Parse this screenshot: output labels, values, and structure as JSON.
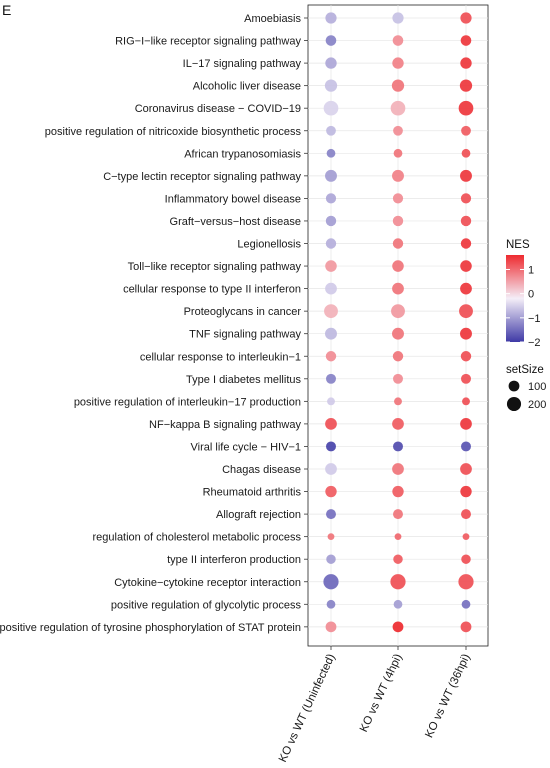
{
  "panel_label": "E",
  "chart_data": {
    "type": "scatter",
    "subtype": "dot-plot",
    "categories": [
      "Amoebiasis",
      "RIG−I−like receptor signaling pathway",
      "IL−17 signaling pathway",
      "Alcoholic liver disease",
      "Coronavirus disease − COVID−19",
      "positive regulation of nitricoxide biosynthetic process",
      "African trypanosomiasis",
      "C−type lectin receptor signaling pathway",
      "Inflammatory bowel disease",
      "Graft−versus−host disease",
      "Legionellosis",
      "Toll−like receptor signaling pathway",
      "cellular response to type II interferon",
      "Proteoglycans in cancer",
      "TNF signaling pathway",
      "cellular response to interleukin−1",
      "Type I diabetes mellitus",
      "positive regulation of interleukin−17 production",
      "NF−kappa B signaling pathway",
      "Viral life cycle − HIV−1",
      "Chagas disease",
      "Rheumatoid arthritis",
      "Allograft rejection",
      "regulation of cholesterol metabolic process",
      "type II interferon production",
      "Cytokine−cytokine receptor interaction",
      "positive regulation of glycolytic process",
      "positive regulation of tyrosine phosphorylation of STAT protein"
    ],
    "x": [
      "KO vs WT (Uninfected)",
      "KO vs WT (4hpi)",
      "KO vs WT (36hpi)"
    ],
    "nes": [
      [
        -0.7,
        -0.5,
        1.3
      ],
      [
        -1.2,
        0.8,
        1.5
      ],
      [
        -0.8,
        0.9,
        1.5
      ],
      [
        -0.5,
        1.0,
        1.5
      ],
      [
        -0.3,
        0.5,
        1.5
      ],
      [
        -0.6,
        0.8,
        1.2
      ],
      [
        -1.2,
        1.0,
        1.3
      ],
      [
        -0.9,
        0.9,
        1.5
      ],
      [
        -0.8,
        0.8,
        1.3
      ],
      [
        -0.9,
        0.8,
        1.3
      ],
      [
        -0.7,
        1.0,
        1.5
      ],
      [
        0.7,
        1.0,
        1.5
      ],
      [
        -0.4,
        1.0,
        1.5
      ],
      [
        0.5,
        0.7,
        1.3
      ],
      [
        -0.6,
        1.0,
        1.5
      ],
      [
        0.8,
        1.0,
        1.3
      ],
      [
        -1.2,
        0.8,
        1.3
      ],
      [
        -0.4,
        1.0,
        1.3
      ],
      [
        1.3,
        1.2,
        1.5
      ],
      [
        -1.9,
        -1.8,
        -1.7
      ],
      [
        -0.4,
        1.0,
        1.3
      ],
      [
        1.2,
        1.2,
        1.5
      ],
      [
        -1.4,
        1.0,
        1.3
      ],
      [
        1.0,
        1.1,
        1.2
      ],
      [
        -0.9,
        1.2,
        1.3
      ],
      [
        -1.5,
        1.3,
        1.3
      ],
      [
        -1.2,
        -0.9,
        -1.4
      ],
      [
        0.8,
        1.6,
        1.3
      ]
    ],
    "set_size": [
      [
        110,
        110,
        110
      ],
      [
        95,
        95,
        95
      ],
      [
        115,
        115,
        115
      ],
      [
        140,
        140,
        140
      ],
      [
        220,
        220,
        220
      ],
      [
        75,
        75,
        75
      ],
      [
        55,
        55,
        55
      ],
      [
        130,
        130,
        130
      ],
      [
        85,
        85,
        85
      ],
      [
        90,
        90,
        90
      ],
      [
        90,
        90,
        90
      ],
      [
        120,
        120,
        120
      ],
      [
        125,
        125,
        125
      ],
      [
        190,
        190,
        190
      ],
      [
        130,
        130,
        130
      ],
      [
        90,
        90,
        90
      ],
      [
        80,
        80,
        80
      ],
      [
        40,
        40,
        40
      ],
      [
        125,
        125,
        125
      ],
      [
        80,
        80,
        80
      ],
      [
        125,
        125,
        125
      ],
      [
        115,
        115,
        115
      ],
      [
        80,
        80,
        80
      ],
      [
        25,
        25,
        25
      ],
      [
        70,
        70,
        70
      ],
      [
        240,
        240,
        240
      ],
      [
        55,
        55,
        55
      ],
      [
        100,
        100,
        100
      ]
    ],
    "color_legend": {
      "title": "NES",
      "ticks": [
        1,
        0,
        -1,
        -2
      ],
      "tick_labels": [
        "1",
        "0",
        "−1",
        "−2"
      ],
      "range": [
        -2,
        1.6
      ],
      "colors": {
        "low": "#3f3aa6",
        "mid": "#f4eef8",
        "high": "#ee2a2f"
      }
    },
    "size_legend": {
      "title": "setSize",
      "ticks": [
        100,
        200
      ],
      "tick_labels": [
        "100",
        "200"
      ]
    },
    "grid": true,
    "panel_border": true
  }
}
